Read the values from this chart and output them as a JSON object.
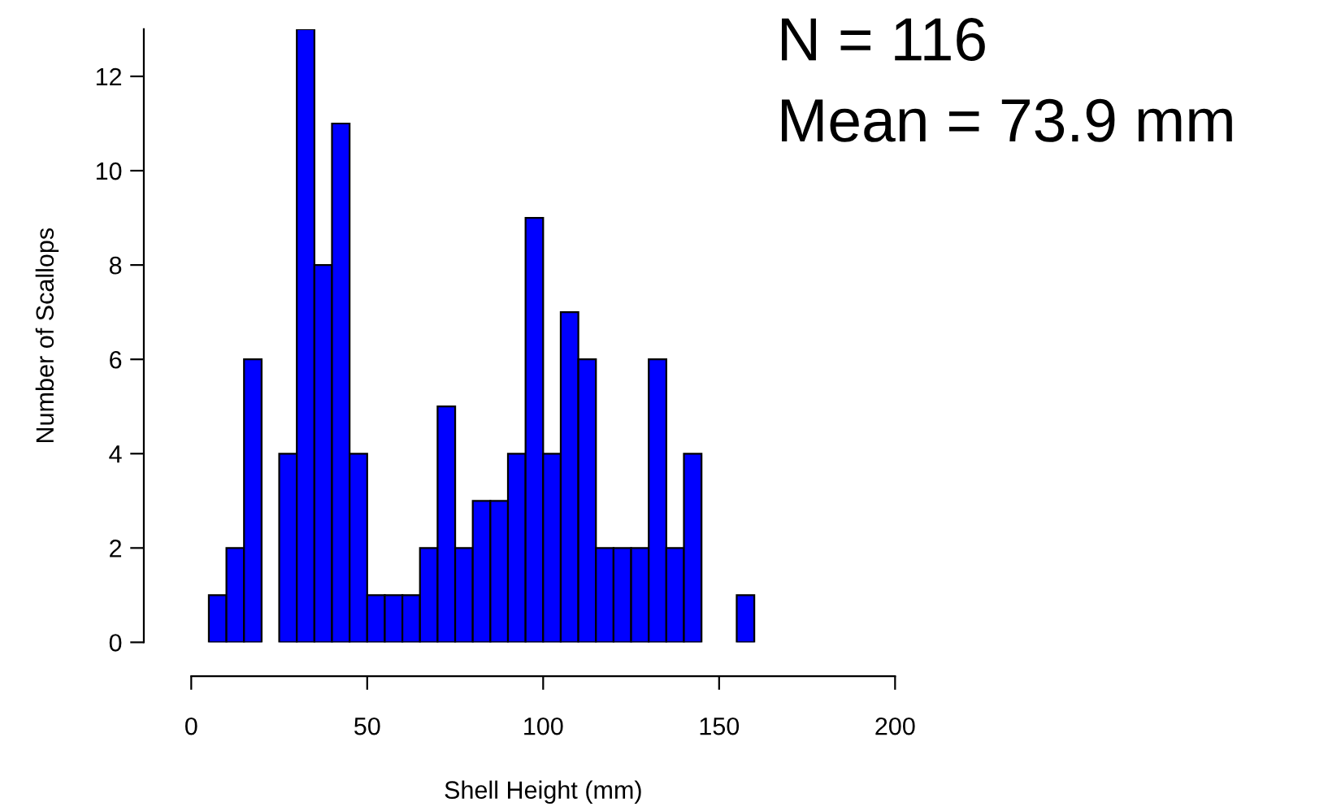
{
  "chart_data": {
    "type": "histogram",
    "xlabel": "Shell Height (mm)",
    "ylabel": "Number of Scallops",
    "annotations": [
      "N = 116",
      "Mean = 73.9 mm"
    ],
    "bins": [
      5,
      10,
      15,
      20,
      25,
      30,
      35,
      40,
      45,
      50,
      55,
      60,
      65,
      70,
      75,
      80,
      85,
      90,
      95,
      100,
      105,
      110,
      115,
      120,
      125,
      130,
      135,
      140,
      145,
      150,
      155,
      160
    ],
    "values": [
      1,
      2,
      6,
      0,
      4,
      13,
      8,
      11,
      4,
      1,
      1,
      1,
      2,
      5,
      2,
      3,
      3,
      4,
      9,
      4,
      7,
      6,
      2,
      2,
      2,
      6,
      2,
      4,
      0,
      0,
      1
    ],
    "color": "#0000ff",
    "xlim": [
      0,
      200
    ],
    "xticks": [
      0,
      50,
      100,
      150,
      200
    ],
    "ylim": [
      0,
      13
    ],
    "yticks": [
      0,
      2,
      4,
      6,
      8,
      10,
      12
    ],
    "grid": false
  }
}
